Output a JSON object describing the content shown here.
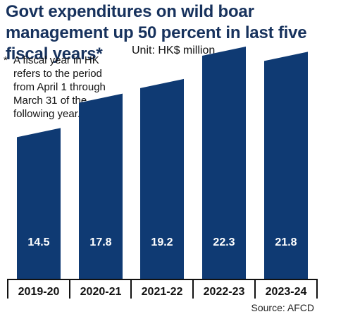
{
  "chart_data": {
    "type": "bar",
    "title": "Govt expenditures on wild boar management up 50 percent in last five fiscal years*",
    "unit_label": "Unit: HK$ million",
    "note_star": "*",
    "footnote": "A fiscal year in HK refers to the period from April 1 through March 31 of the following year.",
    "source": "Source: AFCD",
    "categories": [
      "2019-20",
      "2020-21",
      "2021-22",
      "2022-23",
      "2023-24"
    ],
    "series": [
      {
        "values": [
          14.5,
          17.8,
          19.2,
          22.3,
          21.8
        ]
      }
    ],
    "ylim": [
      0,
      22.3
    ],
    "grid": false,
    "legend": "none"
  },
  "colors": {
    "bar": "#0f3a73",
    "bar_label": "#ffffff",
    "axis": "#111111",
    "title": "#17325d",
    "text": "#111111"
  }
}
